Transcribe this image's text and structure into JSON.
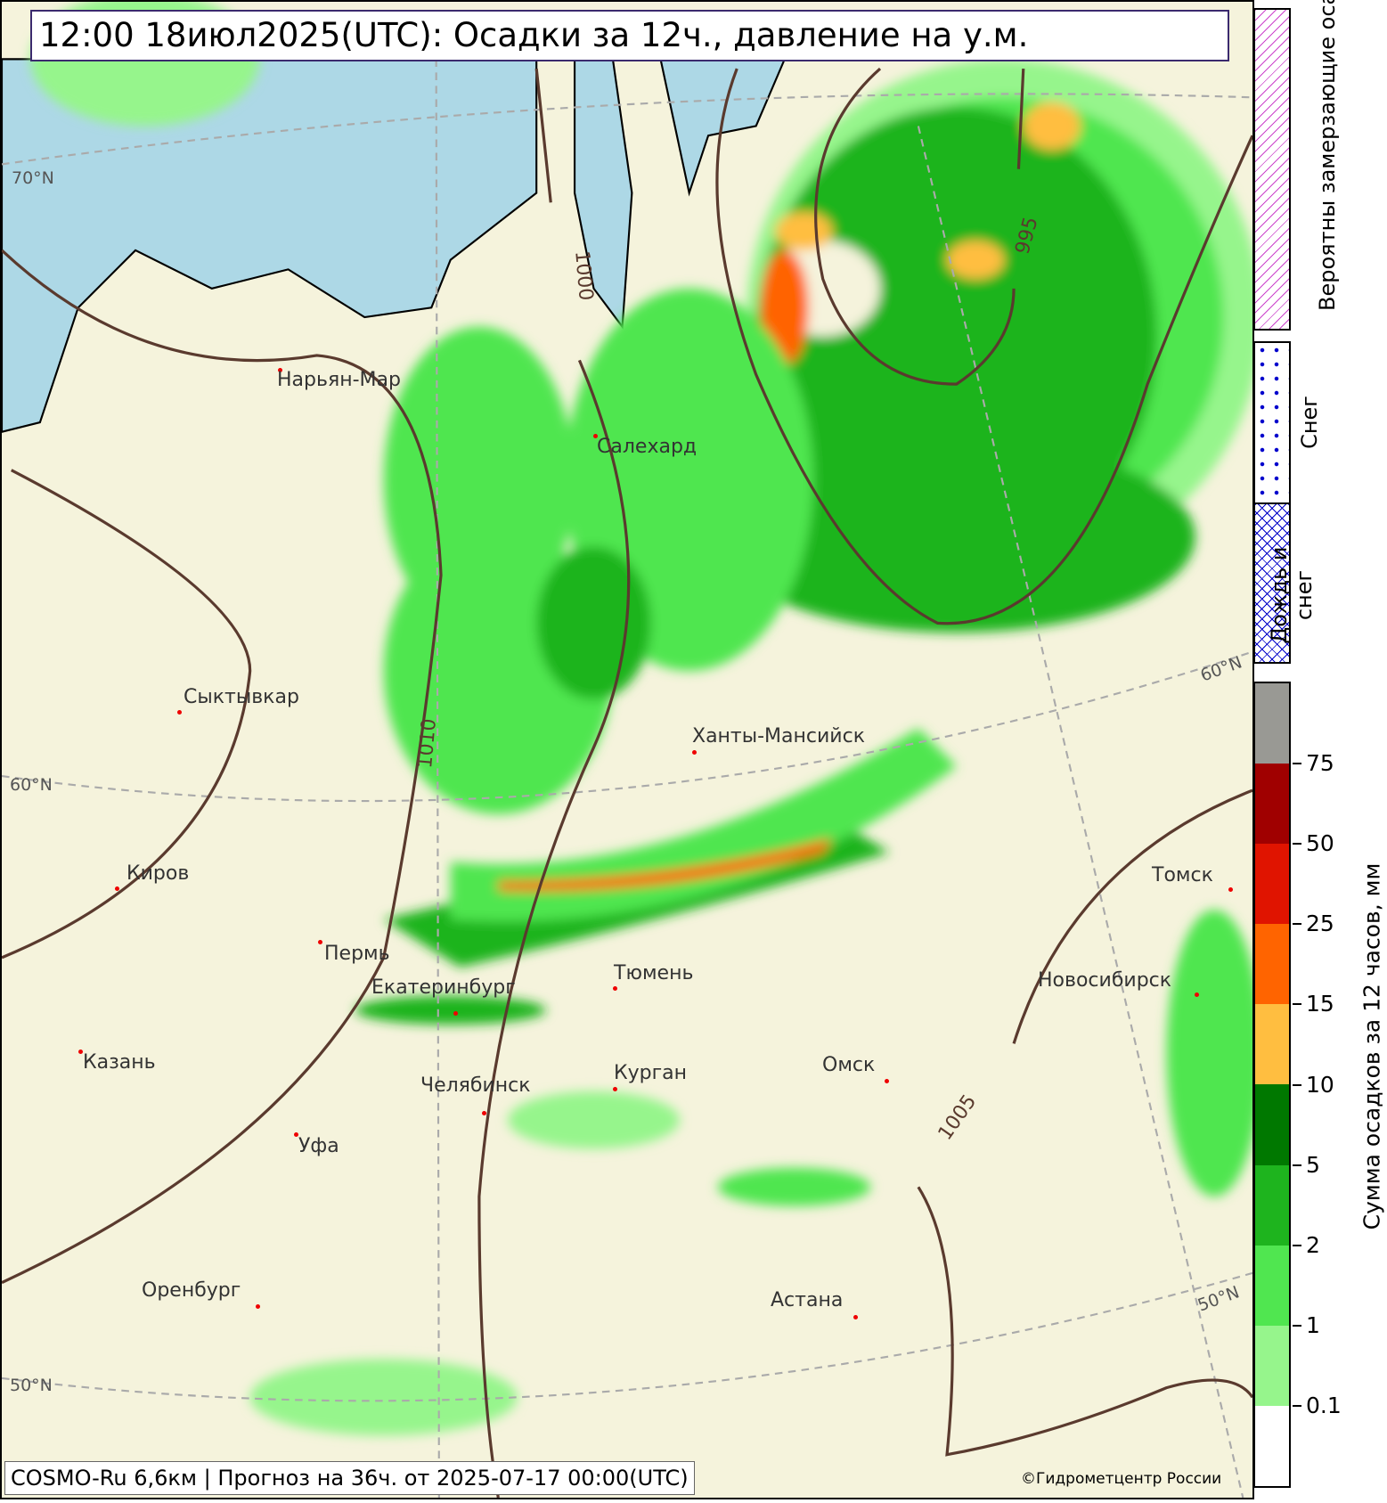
{
  "title": "12:00 18июл2025(UTC): Осадки за 12ч., давление на у.м.",
  "footer": "COSMO-Ru 6,6км | Прогноз на  36ч. от 2025-07-17 00:00(UTC)",
  "copyright": "©Гидрометцентр России",
  "cities": [
    "Нарьян-Мар",
    "Салехард",
    "Сыктывкар",
    "Ханты-Мансийск",
    "Киров",
    "Пермь",
    "Екатеринбург",
    "Тюмень",
    "Казань",
    "Челябинск",
    "Курган",
    "Уфа",
    "Омск",
    "Новосибирск",
    "Томск",
    "Оренбург",
    "Астана"
  ],
  "latitude_labels": [
    "70°N",
    "60°N",
    "50°N",
    "60°N",
    "50°N"
  ],
  "isobar_labels": [
    "1000",
    "995",
    "1010",
    "1005"
  ],
  "legend": {
    "freezing": "Вероятны замерзающие осадки",
    "snow": "Снег",
    "rain_snow": "Дождь и снег",
    "freezing_color": "#cc44cc",
    "snow_color": "#0000cc",
    "rain_snow_color": "#0000cc"
  },
  "colorbar": {
    "title": "Сумма осадков за 12 часов, мм",
    "ticks": [
      "75",
      "50",
      "25",
      "15",
      "10",
      "5",
      "2",
      "1",
      "0.1"
    ],
    "colors": [
      "#999994",
      "#a00000",
      "#e01400",
      "#ff6400",
      "#ffbe40",
      "#007800",
      "#1eb41e",
      "#50e650",
      "#96f58c",
      "#ffffff"
    ]
  },
  "map_colors": {
    "land": "#f5f3dc",
    "water": "#add8e6",
    "isobar": "#5a3a2e"
  }
}
